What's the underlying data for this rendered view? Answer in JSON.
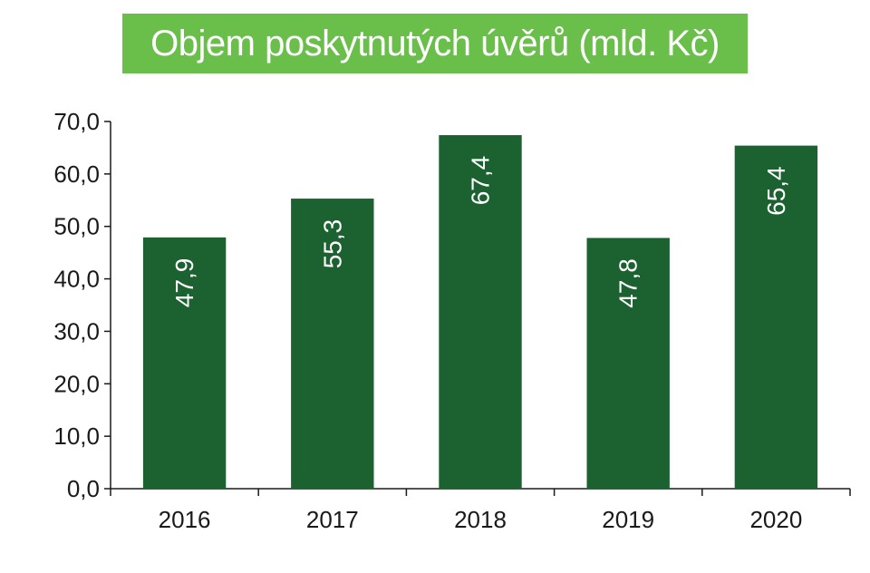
{
  "colors": {
    "banner": "#6abf4b",
    "bar": "#1c6231",
    "axis": "#1a1a1a",
    "title_text": "#ffffff",
    "label_text": "#ffffff"
  },
  "chart_data": {
    "type": "bar",
    "title": "Objem poskytnutých úvěrů (mld. Kč)",
    "categories": [
      "2016",
      "2017",
      "2018",
      "2019",
      "2020"
    ],
    "values": [
      47.9,
      55.3,
      67.4,
      47.8,
      65.4
    ],
    "value_labels": [
      "47,9",
      "55,3",
      "67,4",
      "47,8",
      "65,4"
    ],
    "yticks": [
      "0,0",
      "10,0",
      "20,0",
      "30,0",
      "40,0",
      "50,0",
      "60,0",
      "70,0"
    ],
    "ytick_values": [
      0,
      10,
      20,
      30,
      40,
      50,
      60,
      70
    ],
    "ylim": [
      0,
      70
    ],
    "xlabel": "",
    "ylabel": "",
    "grid": false,
    "legend": "none",
    "data_label_orientation": "vertical"
  }
}
